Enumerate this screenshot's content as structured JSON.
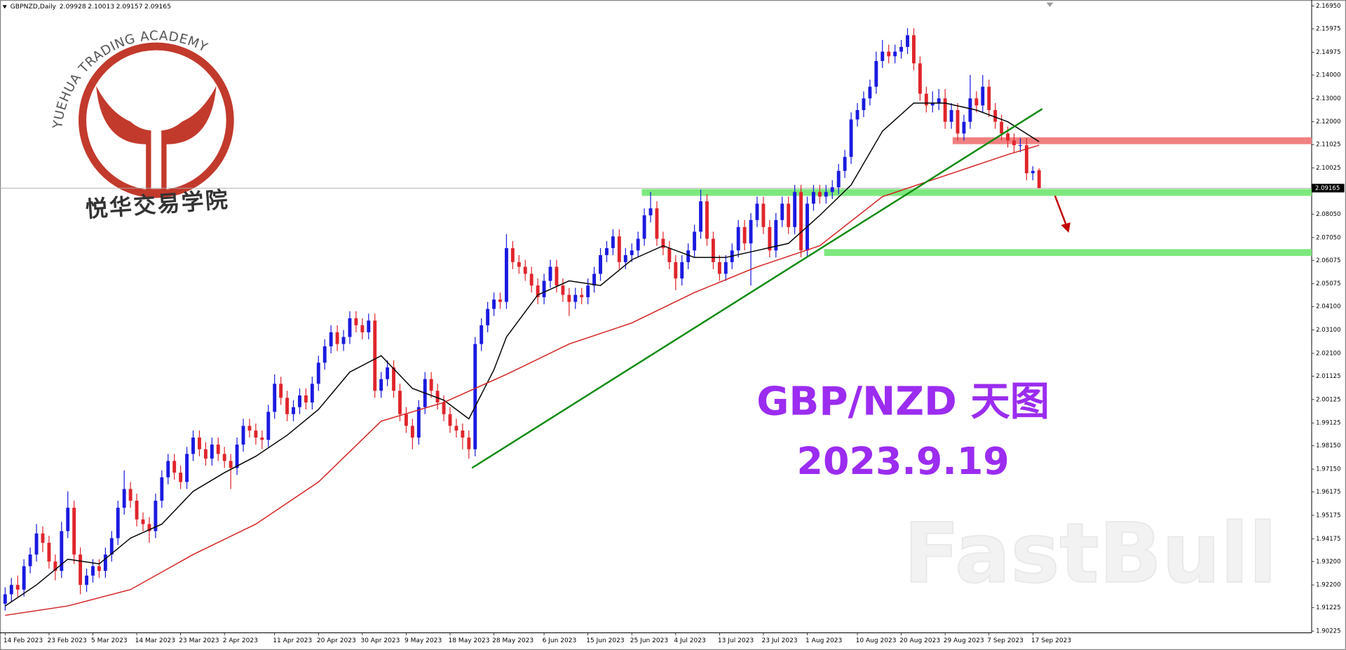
{
  "header": {
    "symbol": "GBPNZD,Daily"
  },
  "logo": {
    "ring_text": "YUEHUA TRADING ACADEMY",
    "name": "悦华交易学院"
  },
  "watermark": "FastBull",
  "chart_data": {
    "type": "candlestick",
    "title": "GBP/NZD 天图",
    "subtitle": "2023.9.19",
    "up_color": "#1a1ae0",
    "down_color": "#e0252b",
    "ylim": [
      1.90225,
      2.1695
    ],
    "yticks": [
      {
        "value": 2.1695,
        "label": "2.16950"
      },
      {
        "value": 2.15975,
        "label": "2.15975"
      },
      {
        "value": 2.14975,
        "label": "2.14975"
      },
      {
        "value": 2.14,
        "label": "2.14000"
      },
      {
        "value": 2.13,
        "label": "2.13000"
      },
      {
        "value": 2.12,
        "label": "2.12000"
      },
      {
        "value": 2.11025,
        "label": "2.11025"
      },
      {
        "value": 2.10025,
        "label": "2.10025"
      },
      {
        "value": 2.0805,
        "label": "2.08050"
      },
      {
        "value": 2.0705,
        "label": "2.07050"
      },
      {
        "value": 2.06075,
        "label": "2.06075"
      },
      {
        "value": 2.05075,
        "label": "2.05075"
      },
      {
        "value": 2.041,
        "label": "2.04100"
      },
      {
        "value": 2.031,
        "label": "2.03100"
      },
      {
        "value": 2.021,
        "label": "2.02100"
      },
      {
        "value": 2.01125,
        "label": "2.01125"
      },
      {
        "value": 2.00125,
        "label": "2.00125"
      },
      {
        "value": 1.99125,
        "label": "1.99125"
      },
      {
        "value": 1.9815,
        "label": "1.98150"
      },
      {
        "value": 1.9715,
        "label": "1.97150"
      },
      {
        "value": 1.96175,
        "label": "1.96175"
      },
      {
        "value": 1.95175,
        "label": "1.95175"
      },
      {
        "value": 1.94175,
        "label": "1.94175"
      },
      {
        "value": 1.932,
        "label": "1.93200"
      },
      {
        "value": 1.922,
        "label": "1.92200"
      },
      {
        "value": 1.91225,
        "label": "1.91225"
      },
      {
        "value": 1.90225,
        "label": "1.90225"
      }
    ],
    "categories": [
      "14 Feb 2023",
      null,
      null,
      null,
      null,
      null,
      null,
      "23 Feb 2023",
      null,
      null,
      null,
      null,
      null,
      null,
      "5 Mar 2023",
      null,
      null,
      null,
      null,
      null,
      null,
      "14 Mar 2023",
      null,
      null,
      null,
      null,
      null,
      null,
      "23 Mar 2023",
      null,
      null,
      null,
      null,
      null,
      null,
      "2 Apr 2023",
      null,
      null,
      null,
      null,
      null,
      null,
      null,
      "11 Apr 2023",
      null,
      null,
      null,
      null,
      null,
      null,
      "20 Apr 2023",
      null,
      null,
      null,
      null,
      null,
      null,
      "30 Apr 2023",
      null,
      null,
      null,
      null,
      null,
      null,
      "9 May 2023",
      null,
      null,
      null,
      null,
      null,
      null,
      "18 May 2023",
      null,
      null,
      null,
      null,
      null,
      null,
      "28 May 2023",
      null,
      null,
      null,
      null,
      null,
      null,
      null,
      "6 Jun 2023",
      null,
      null,
      null,
      null,
      null,
      null,
      "15 Jun 2023",
      null,
      null,
      null,
      null,
      null,
      null,
      "25 Jun 2023",
      null,
      null,
      null,
      null,
      null,
      null,
      "4 Jul 2023",
      null,
      null,
      null,
      null,
      null,
      null,
      "13 Jul 2023",
      null,
      null,
      null,
      null,
      null,
      null,
      "23 Jul 2023",
      null,
      null,
      null,
      null,
      null,
      null,
      "1 Aug 2023",
      null,
      null,
      null,
      null,
      null,
      null,
      null,
      "10 Aug 2023",
      null,
      null,
      null,
      null,
      null,
      null,
      "20 Aug 2023",
      null,
      null,
      null,
      null,
      null,
      null,
      "29 Aug 2023",
      null,
      null,
      null,
      null,
      null,
      null,
      "7 Sep 2023",
      null,
      null,
      null,
      null,
      null,
      null,
      "17 Sep 2023",
      null
    ],
    "ohlc": [
      [
        1.914,
        1.921,
        1.911,
        1.918
      ],
      [
        1.918,
        1.925,
        1.915,
        1.922
      ],
      [
        1.922,
        1.926,
        1.917,
        1.92
      ],
      [
        1.92,
        1.933,
        1.917,
        1.93
      ],
      [
        1.93,
        1.938,
        1.927,
        1.935
      ],
      [
        1.935,
        1.948,
        1.932,
        1.944
      ],
      [
        1.944,
        1.947,
        1.936,
        1.94
      ],
      [
        1.94,
        1.943,
        1.929,
        1.932
      ],
      [
        1.932,
        1.935,
        1.924,
        1.928
      ],
      [
        1.928,
        1.949,
        1.925,
        1.945
      ],
      [
        1.945,
        1.962,
        1.942,
        1.955
      ],
      [
        1.955,
        1.958,
        1.931,
        1.935
      ],
      [
        1.935,
        1.938,
        1.918,
        1.922
      ],
      [
        1.922,
        1.929,
        1.919,
        1.926
      ],
      [
        1.926,
        1.933,
        1.923,
        1.93
      ],
      [
        1.93,
        1.933,
        1.925,
        1.928
      ],
      [
        1.928,
        1.938,
        1.925,
        1.935
      ],
      [
        1.935,
        1.945,
        1.932,
        1.942
      ],
      [
        1.942,
        1.958,
        1.939,
        1.955
      ],
      [
        1.955,
        1.971,
        1.952,
        1.963
      ],
      [
        1.963,
        1.966,
        1.955,
        1.958
      ],
      [
        1.958,
        1.961,
        1.947,
        1.95
      ],
      [
        1.95,
        1.953,
        1.945,
        1.948
      ],
      [
        1.948,
        1.951,
        1.94,
        1.945
      ],
      [
        1.945,
        1.961,
        1.942,
        1.958
      ],
      [
        1.958,
        1.971,
        1.955,
        1.968
      ],
      [
        1.968,
        1.978,
        1.965,
        1.975
      ],
      [
        1.975,
        1.978,
        1.967,
        1.97
      ],
      [
        1.97,
        1.973,
        1.963,
        1.966
      ],
      [
        1.966,
        1.981,
        1.963,
        1.978
      ],
      [
        1.978,
        1.988,
        1.975,
        1.985
      ],
      [
        1.985,
        1.988,
        1.977,
        1.98
      ],
      [
        1.98,
        1.983,
        1.973,
        1.976
      ],
      [
        1.976,
        1.985,
        1.973,
        1.982
      ],
      [
        1.982,
        1.985,
        1.975,
        1.978
      ],
      [
        1.978,
        1.981,
        1.972,
        1.975
      ],
      [
        1.975,
        1.978,
        1.963,
        1.972
      ],
      [
        1.972,
        1.985,
        1.969,
        1.982
      ],
      [
        1.982,
        1.993,
        1.979,
        1.99
      ],
      [
        1.99,
        1.993,
        1.985,
        1.988
      ],
      [
        1.988,
        1.991,
        1.982,
        1.985
      ],
      [
        1.985,
        1.988,
        1.98,
        1.984
      ],
      [
        1.984,
        1.999,
        1.981,
        1.996
      ],
      [
        1.996,
        2.012,
        1.993,
        2.008
      ],
      [
        2.008,
        2.011,
        1.999,
        2.002
      ],
      [
        2.002,
        2.005,
        1.992,
        1.995
      ],
      [
        1.995,
        2.001,
        1.992,
        1.998
      ],
      [
        1.998,
        2.006,
        1.995,
        2.003
      ],
      [
        2.003,
        2.006,
        1.997,
        2.0
      ],
      [
        2.0,
        2.011,
        1.997,
        2.008
      ],
      [
        2.008,
        2.02,
        2.005,
        2.017
      ],
      [
        2.017,
        2.027,
        2.014,
        2.024
      ],
      [
        2.024,
        2.033,
        2.021,
        2.03
      ],
      [
        2.03,
        2.033,
        2.022,
        2.025
      ],
      [
        2.025,
        2.031,
        2.022,
        2.028
      ],
      [
        2.028,
        2.039,
        2.025,
        2.036
      ],
      [
        2.036,
        2.039,
        2.03,
        2.033
      ],
      [
        2.033,
        2.036,
        2.027,
        2.03
      ],
      [
        2.03,
        2.038,
        2.027,
        2.035
      ],
      [
        2.035,
        2.038,
        2.002,
        2.005
      ],
      [
        2.005,
        2.013,
        2.002,
        2.01
      ],
      [
        2.01,
        2.018,
        2.007,
        2.015
      ],
      [
        2.015,
        2.018,
        2.002,
        2.005
      ],
      [
        2.005,
        2.008,
        1.992,
        1.995
      ],
      [
        1.995,
        1.998,
        1.987,
        1.99
      ],
      [
        1.99,
        1.993,
        1.98,
        1.985
      ],
      [
        1.985,
        2.001,
        1.982,
        1.998
      ],
      [
        1.998,
        2.013,
        1.995,
        2.01
      ],
      [
        2.01,
        2.013,
        2.002,
        2.005
      ],
      [
        2.005,
        2.008,
        1.997,
        2.0
      ],
      [
        2.0,
        2.003,
        1.992,
        1.995
      ],
      [
        1.995,
        1.998,
        1.987,
        1.99
      ],
      [
        1.99,
        1.993,
        1.985,
        1.988
      ],
      [
        1.988,
        1.991,
        1.98,
        1.985
      ],
      [
        1.985,
        1.988,
        1.976,
        1.98
      ],
      [
        1.98,
        2.028,
        1.977,
        2.025
      ],
      [
        2.025,
        2.036,
        2.022,
        2.033
      ],
      [
        2.033,
        2.043,
        2.03,
        2.04
      ],
      [
        2.04,
        2.047,
        2.037,
        2.044
      ],
      [
        2.044,
        2.047,
        2.04,
        2.043
      ],
      [
        2.043,
        2.072,
        2.04,
        2.066
      ],
      [
        2.066,
        2.069,
        2.057,
        2.06
      ],
      [
        2.06,
        2.063,
        2.055,
        2.058
      ],
      [
        2.058,
        2.061,
        2.052,
        2.055
      ],
      [
        2.055,
        2.058,
        2.047,
        2.05
      ],
      [
        2.05,
        2.053,
        2.042,
        2.045
      ],
      [
        2.045,
        2.055,
        2.042,
        2.052
      ],
      [
        2.052,
        2.061,
        2.049,
        2.058
      ],
      [
        2.058,
        2.061,
        2.047,
        2.05
      ],
      [
        2.05,
        2.053,
        2.043,
        2.046
      ],
      [
        2.046,
        2.049,
        2.037,
        2.043
      ],
      [
        2.043,
        2.049,
        2.04,
        2.046
      ],
      [
        2.046,
        2.049,
        2.042,
        2.045
      ],
      [
        2.045,
        2.053,
        2.042,
        2.05
      ],
      [
        2.05,
        2.058,
        2.047,
        2.055
      ],
      [
        2.055,
        2.066,
        2.052,
        2.063
      ],
      [
        2.063,
        2.069,
        2.06,
        2.066
      ],
      [
        2.066,
        2.074,
        2.063,
        2.071
      ],
      [
        2.071,
        2.074,
        2.057,
        2.06
      ],
      [
        2.06,
        2.066,
        2.057,
        2.063
      ],
      [
        2.063,
        2.068,
        2.06,
        2.065
      ],
      [
        2.065,
        2.073,
        2.062,
        2.07
      ],
      [
        2.07,
        2.083,
        2.067,
        2.08
      ],
      [
        2.08,
        2.09,
        2.077,
        2.083
      ],
      [
        2.083,
        2.086,
        2.067,
        2.07
      ],
      [
        2.07,
        2.073,
        2.063,
        2.066
      ],
      [
        2.066,
        2.069,
        2.057,
        2.06
      ],
      [
        2.06,
        2.063,
        2.048,
        2.053
      ],
      [
        2.053,
        2.063,
        2.05,
        2.06
      ],
      [
        2.06,
        2.068,
        2.057,
        2.065
      ],
      [
        2.065,
        2.076,
        2.062,
        2.073
      ],
      [
        2.073,
        2.091,
        2.07,
        2.086
      ],
      [
        2.086,
        2.089,
        2.067,
        2.07
      ],
      [
        2.07,
        2.073,
        2.057,
        2.06
      ],
      [
        2.06,
        2.063,
        2.052,
        2.055
      ],
      [
        2.055,
        2.063,
        2.052,
        2.06
      ],
      [
        2.06,
        2.068,
        2.057,
        2.065
      ],
      [
        2.065,
        2.078,
        2.062,
        2.075
      ],
      [
        2.075,
        2.078,
        2.065,
        2.068
      ],
      [
        2.068,
        2.081,
        2.05,
        2.078
      ],
      [
        2.078,
        2.088,
        2.075,
        2.085
      ],
      [
        2.085,
        2.088,
        2.072,
        2.075
      ],
      [
        2.075,
        2.078,
        2.062,
        2.065
      ],
      [
        2.065,
        2.081,
        2.062,
        2.078
      ],
      [
        2.078,
        2.088,
        2.075,
        2.085
      ],
      [
        2.085,
        2.088,
        2.072,
        2.075
      ],
      [
        2.075,
        2.093,
        2.072,
        2.09
      ],
      [
        2.09,
        2.093,
        2.062,
        2.065
      ],
      [
        2.065,
        2.088,
        2.062,
        2.085
      ],
      [
        2.085,
        2.093,
        2.082,
        2.09
      ],
      [
        2.09,
        2.093,
        2.085,
        2.088
      ],
      [
        2.088,
        2.093,
        2.085,
        2.09
      ],
      [
        2.09,
        2.095,
        2.087,
        2.092
      ],
      [
        2.092,
        2.102,
        2.089,
        2.099
      ],
      [
        2.099,
        2.108,
        2.096,
        2.105
      ],
      [
        2.105,
        2.124,
        2.102,
        2.121
      ],
      [
        2.121,
        2.128,
        2.118,
        2.125
      ],
      [
        2.125,
        2.133,
        2.122,
        2.13
      ],
      [
        2.13,
        2.138,
        2.127,
        2.135
      ],
      [
        2.135,
        2.15,
        2.132,
        2.146
      ],
      [
        2.146,
        2.155,
        2.143,
        2.15
      ],
      [
        2.15,
        2.153,
        2.145,
        2.148
      ],
      [
        2.148,
        2.153,
        2.145,
        2.15
      ],
      [
        2.15,
        2.155,
        2.147,
        2.152
      ],
      [
        2.152,
        2.16,
        2.149,
        2.157
      ],
      [
        2.157,
        2.16,
        2.142,
        2.145
      ],
      [
        2.145,
        2.148,
        2.129,
        2.132
      ],
      [
        2.132,
        2.135,
        2.124,
        2.127
      ],
      [
        2.127,
        2.133,
        2.124,
        2.128
      ],
      [
        2.128,
        2.134,
        2.125,
        2.13
      ],
      [
        2.13,
        2.134,
        2.117,
        2.12
      ],
      [
        2.12,
        2.128,
        2.117,
        2.125
      ],
      [
        2.125,
        2.128,
        2.112,
        2.115
      ],
      [
        2.115,
        2.123,
        2.112,
        2.12
      ],
      [
        2.12,
        2.14,
        2.117,
        2.13
      ],
      [
        2.13,
        2.133,
        2.124,
        2.127
      ],
      [
        2.127,
        2.14,
        2.124,
        2.135
      ],
      [
        2.135,
        2.138,
        2.122,
        2.125
      ],
      [
        2.125,
        2.128,
        2.117,
        2.12
      ],
      [
        2.12,
        2.123,
        2.112,
        2.115
      ],
      [
        2.115,
        2.118,
        2.109,
        2.112
      ],
      [
        2.112,
        2.115,
        2.107,
        2.11
      ],
      [
        2.11,
        2.113,
        2.107,
        2.11
      ],
      [
        2.11,
        2.113,
        2.095,
        2.098
      ],
      [
        2.098,
        2.101,
        2.095,
        2.099
      ],
      [
        2.09928,
        2.10013,
        2.09157,
        2.09165
      ]
    ],
    "series": [
      {
        "color": "#000000",
        "x": [
          0,
          5,
          10,
          15,
          20,
          25,
          30,
          35,
          40,
          45,
          50,
          55,
          60,
          65,
          70,
          74,
          78,
          80,
          85,
          90,
          95,
          100,
          105,
          110,
          115,
          120,
          125,
          130,
          135,
          140,
          145,
          150,
          155,
          160,
          165
        ],
        "values": [
          1.913,
          1.922,
          1.933,
          1.931,
          1.942,
          1.948,
          1.962,
          1.97,
          1.977,
          1.986,
          1.997,
          2.013,
          2.02,
          2.006,
          2.001,
          1.993,
          2.014,
          2.028,
          2.046,
          2.052,
          2.05,
          2.061,
          2.067,
          2.062,
          2.062,
          2.065,
          2.068,
          2.08,
          2.093,
          2.116,
          2.128,
          2.128,
          2.125,
          2.12,
          2.1115
        ]
      },
      {
        "color": "#d42020",
        "x": [
          0,
          10,
          20,
          30,
          40,
          50,
          60,
          70,
          80,
          90,
          100,
          110,
          120,
          130,
          140,
          150,
          160,
          165
        ],
        "values": [
          1.909,
          1.913,
          1.92,
          1.935,
          1.948,
          1.966,
          1.992,
          2.0,
          2.012,
          2.025,
          2.034,
          2.047,
          2.058,
          2.067,
          2.088,
          2.097,
          2.106,
          2.11
        ]
      }
    ],
    "trendline": {
      "color": "#0a8a0a",
      "x": [
        74.5,
        165.5
      ],
      "values": [
        1.972,
        2.1255
      ]
    },
    "levels": [
      {
        "value": 2.0898,
        "start": 101.6,
        "color": "#7de87d"
      },
      {
        "value": 2.0641,
        "start": 130.7,
        "color": "#7de87d"
      },
      {
        "value": 2.1119,
        "start": 151.2,
        "color": "#f08080"
      }
    ]
  }
}
